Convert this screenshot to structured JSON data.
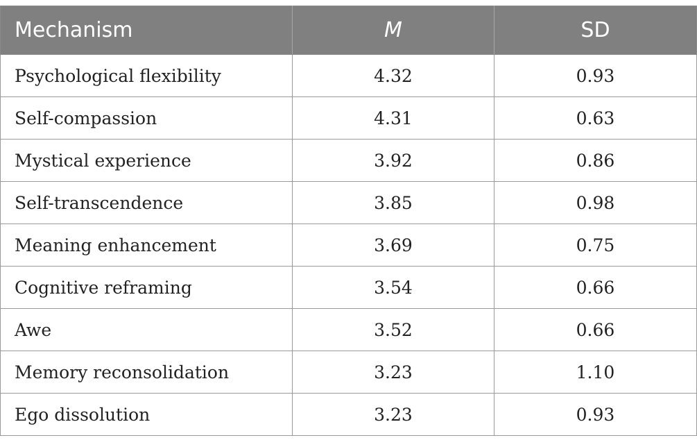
{
  "table": {
    "headers": [
      "Mechanism",
      "M",
      "SD"
    ],
    "rows": [
      [
        "Psychological flexibility",
        "4.32",
        "0.93"
      ],
      [
        "Self-compassion",
        "4.31",
        "0.63"
      ],
      [
        "Mystical experience",
        "3.92",
        "0.86"
      ],
      [
        "Self-transcendence",
        "3.85",
        "0.98"
      ],
      [
        "Meaning enhancement",
        "3.69",
        "0.75"
      ],
      [
        "Cognitive reframing",
        "3.54",
        "0.66"
      ],
      [
        "Awe",
        "3.52",
        "0.66"
      ],
      [
        "Memory reconsolidation",
        "3.23",
        "1.10"
      ],
      [
        "Ego dissolution",
        "3.23",
        "0.93"
      ]
    ]
  },
  "colors": {
    "header_bg": "#808080",
    "header_text": "#ffffff",
    "grid": "#9a9a9a"
  }
}
